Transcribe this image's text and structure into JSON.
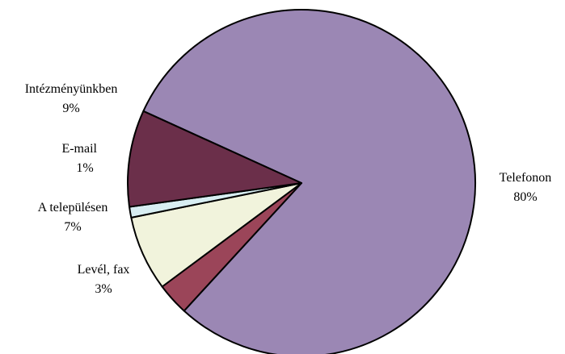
{
  "chart_data": {
    "type": "pie",
    "slices": [
      {
        "label": "Telefonon",
        "value": 80,
        "pct_label": "80%",
        "color": "#9b87b4"
      },
      {
        "label": "Levél, fax",
        "value": 3,
        "pct_label": "3%",
        "color": "#9b4559"
      },
      {
        "label": "A településen",
        "value": 7,
        "pct_label": "7%",
        "color": "#f1f3dc"
      },
      {
        "label": "E-mail",
        "value": 1,
        "pct_label": "1%",
        "color": "#d8eef2"
      },
      {
        "label": "Intézményünkben",
        "value": 9,
        "pct_label": "9%",
        "color": "#6b2f4a"
      }
    ],
    "legend": "none"
  }
}
